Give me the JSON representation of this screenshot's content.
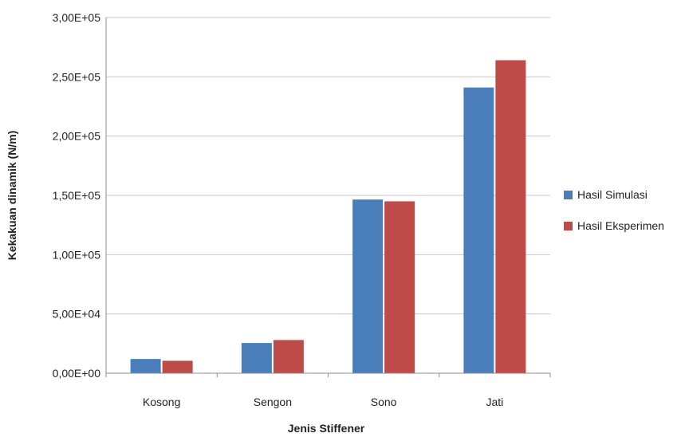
{
  "chart_data": {
    "type": "bar",
    "title": "",
    "xlabel": "Jenis Stiffener",
    "ylabel": "Kekakuan dinamik (N/m)",
    "categories": [
      "Kosong",
      "Sengon",
      "Sono",
      "Jati"
    ],
    "series": [
      {
        "name": "Hasil Simulasi",
        "color": "#4a7ebb",
        "values": [
          12000,
          25500,
          146500,
          241000
        ]
      },
      {
        "name": "Hasil Eksperimen",
        "color": "#be4b48",
        "values": [
          10500,
          28000,
          145000,
          264000
        ]
      }
    ],
    "ylim": [
      0,
      300000
    ],
    "yticks": [
      {
        "value": 0,
        "label": "0,00E+00"
      },
      {
        "value": 50000,
        "label": "5,00E+04"
      },
      {
        "value": 100000,
        "label": "1,00E+05"
      },
      {
        "value": 150000,
        "label": "1,50E+05"
      },
      {
        "value": 200000,
        "label": "2,00E+05"
      },
      {
        "value": 250000,
        "label": "2,50E+05"
      },
      {
        "value": 300000,
        "label": "3,00E+05"
      }
    ],
    "grid": true,
    "legend_position": "right"
  }
}
